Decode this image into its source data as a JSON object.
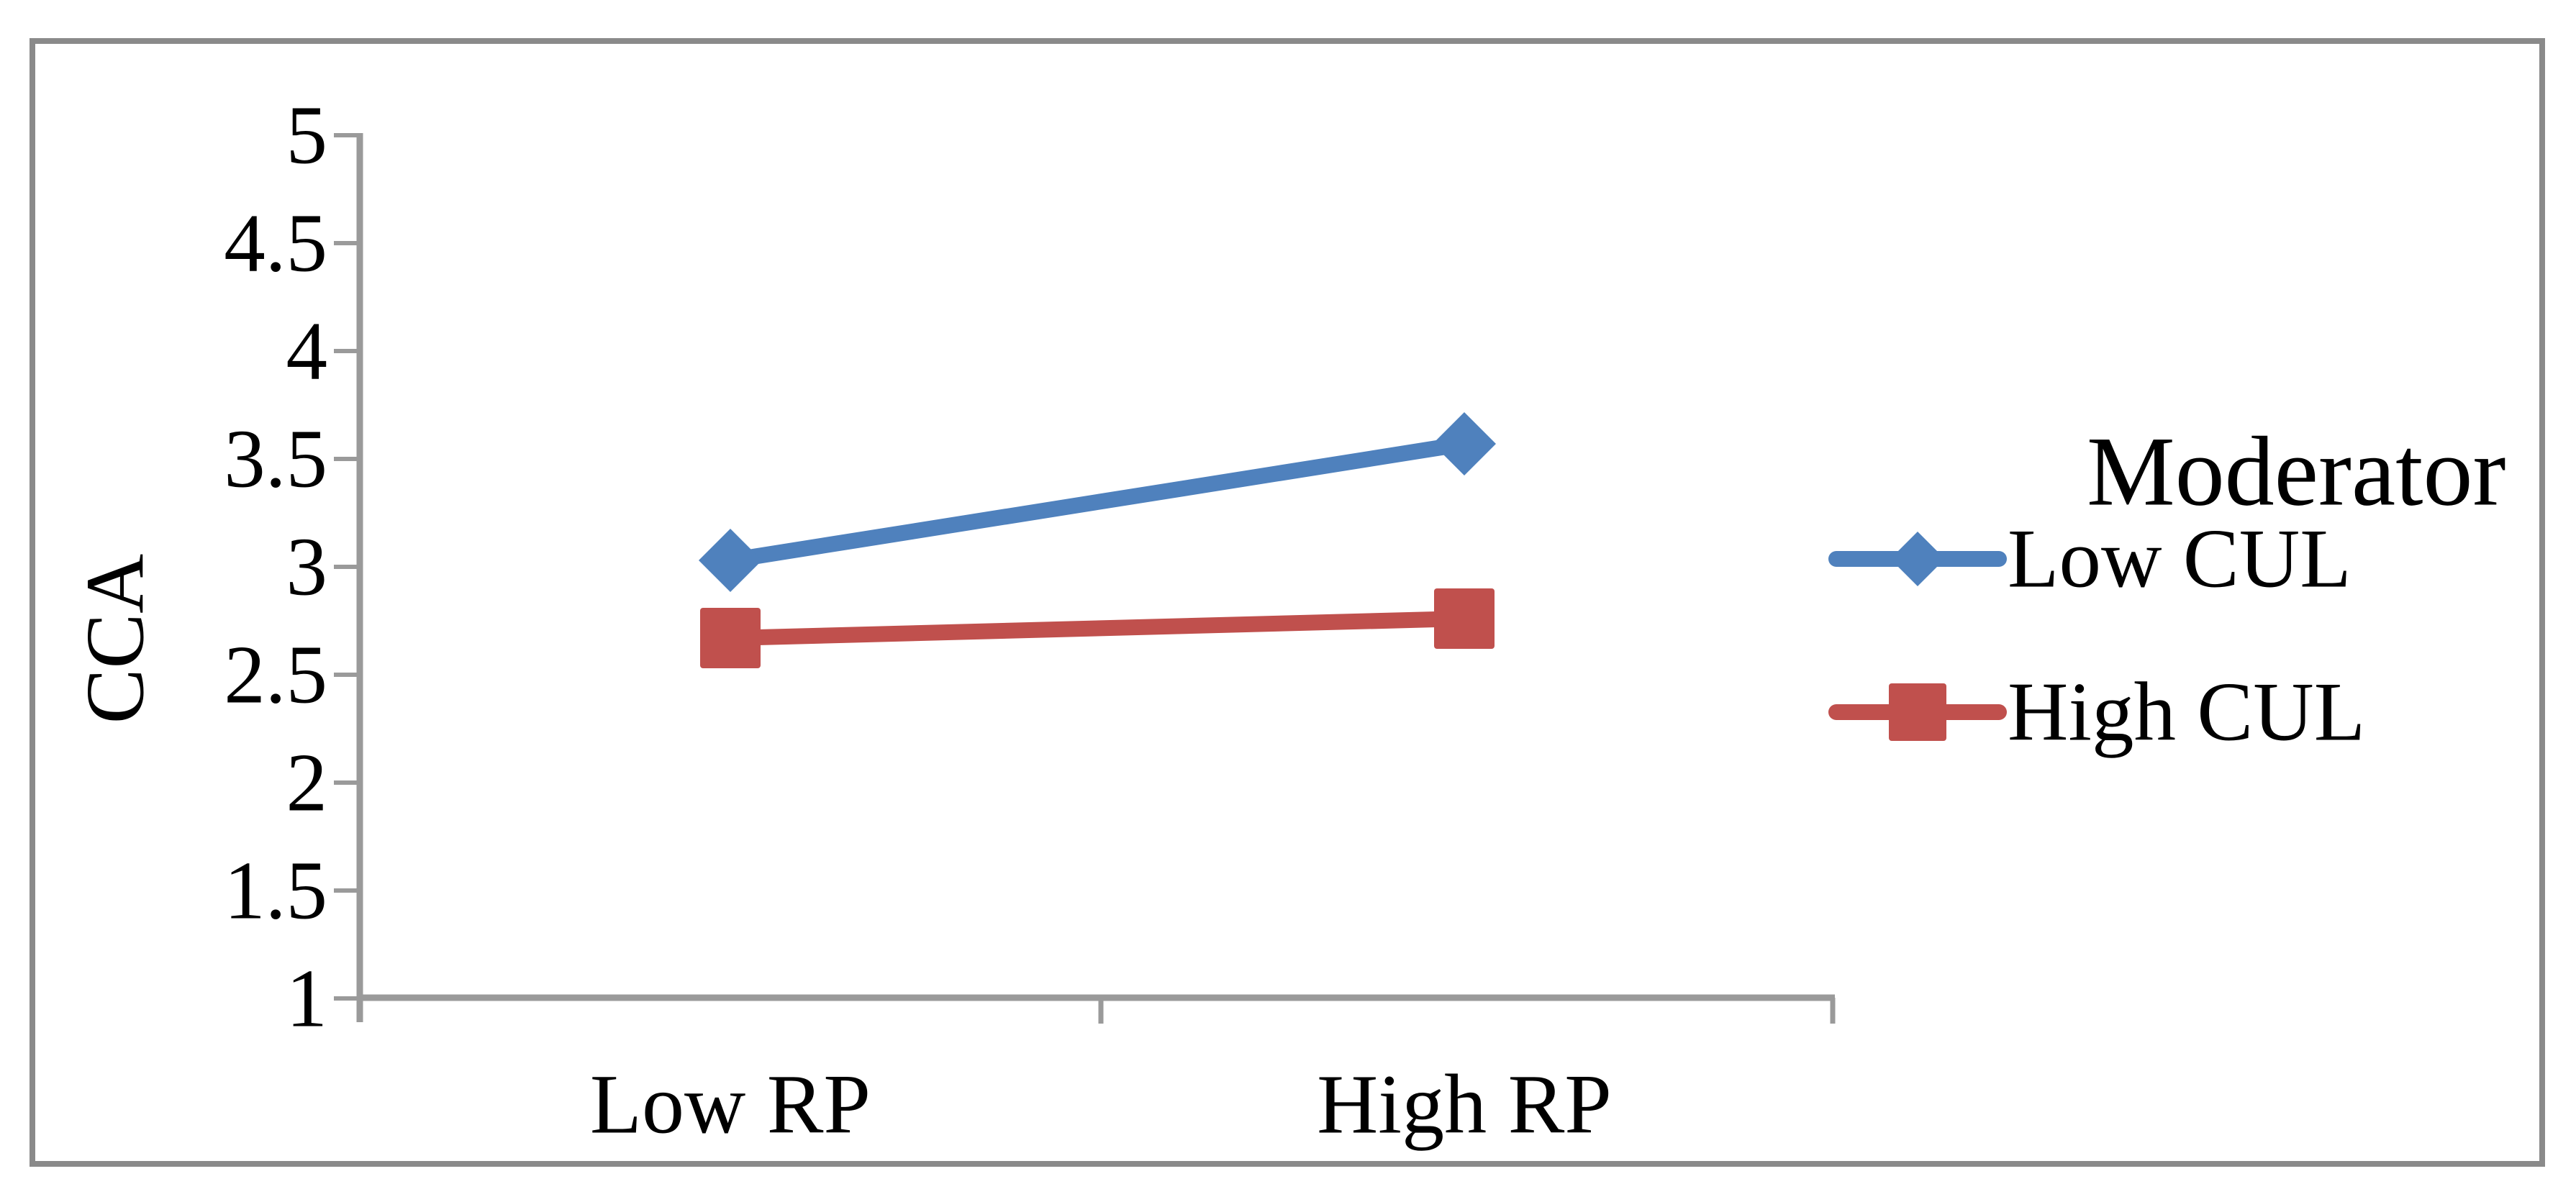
{
  "chart_data": {
    "type": "line",
    "title": "",
    "categories": [
      "Low RP",
      "High RP"
    ],
    "series": [
      {
        "name": "Low CUL",
        "values": [
          3.03,
          3.57
        ],
        "color": "#4F81BD",
        "marker": "diamond"
      },
      {
        "name": "High CUL",
        "values": [
          2.67,
          2.76
        ],
        "color": "#C0504D",
        "marker": "square"
      }
    ],
    "xlabel": "",
    "ylabel": "CCA",
    "ylim": [
      1,
      5
    ],
    "ytick_step": 0.5,
    "yticks": [
      "1",
      "1.5",
      "2",
      "2.5",
      "3",
      "3.5",
      "4",
      "4.5",
      "5"
    ],
    "legend_title": "Moderator",
    "legend_position": "right",
    "grid": false,
    "marker_filled": true
  },
  "colors": {
    "axis": "#9A9A9A",
    "border": "#8A8A8A",
    "text": "#000000",
    "background": "#FFFFFF",
    "series_blue": "#4F81BD",
    "series_red": "#C0504D"
  }
}
